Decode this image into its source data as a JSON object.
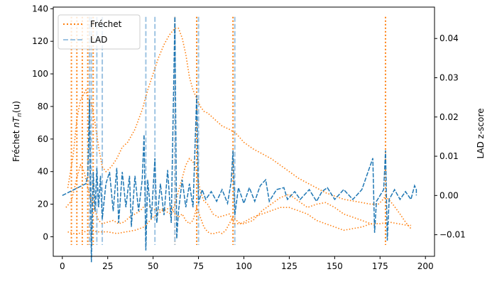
{
  "chart_data": {
    "type": "line",
    "title": "",
    "xlim": [
      -5,
      205
    ],
    "ylim_left": [
      -12,
      141
    ],
    "ylim_right": [
      -0.0155,
      0.048
    ],
    "x_ticks": [
      0,
      25,
      50,
      75,
      100,
      125,
      150,
      175,
      200
    ],
    "y_left_ticks": [
      0,
      20,
      40,
      60,
      80,
      100,
      120,
      140
    ],
    "y_right_ticks": [
      -0.01,
      0.0,
      0.01,
      0.02,
      0.03,
      0.04
    ],
    "y_right_tick_labels": [
      "−0.01",
      "0.00",
      "0.01",
      "0.02",
      "0.03",
      "0.04"
    ],
    "xlabel": "",
    "ylabel_left": {
      "prefix": "Fréchet ",
      "var": "nT",
      "sub": "n",
      "suffix": "(u)"
    },
    "ylabel_right": "LAD z-score",
    "legend": {
      "position": "upper-left",
      "items": [
        {
          "label": "Fréchet",
          "style": "dotted",
          "color": "#ff7f0e"
        },
        {
          "label": "LAD",
          "style": "dashed",
          "color": "#9ec4e2"
        }
      ]
    },
    "colors": {
      "frechet": "#ff7f0e",
      "lad_series": "#1f77b4",
      "lad_vlines": "#9ec4e2"
    },
    "frechet_vlines": [
      5,
      8,
      11,
      14,
      15,
      17,
      62,
      74,
      94,
      178
    ],
    "lad_vlines": [
      15,
      16,
      19,
      22,
      46,
      51,
      62,
      75,
      95
    ],
    "frechet_curves": [
      {
        "name": "upper",
        "x": [
          3,
          6,
          8,
          10,
          12,
          13,
          14,
          16,
          18,
          20,
          22,
          24,
          27,
          30,
          33,
          36,
          40,
          44,
          47,
          50,
          53,
          56,
          59,
          62,
          64,
          66,
          68,
          70,
          72,
          74,
          76,
          78,
          80,
          84,
          88,
          92,
          96,
          100,
          105,
          110,
          115,
          120,
          125,
          130,
          135,
          140,
          145,
          150,
          155,
          160,
          165,
          170,
          174,
          176,
          178,
          182,
          186,
          189,
          192
        ],
        "y": [
          30,
          50,
          72,
          84,
          88,
          90,
          85,
          82,
          70,
          55,
          43,
          40,
          43,
          48,
          55,
          58,
          66,
          78,
          90,
          100,
          110,
          118,
          124,
          128,
          128,
          122,
          112,
          98,
          90,
          85,
          80,
          77,
          76,
          72,
          68,
          66,
          63,
          58,
          54,
          51,
          48,
          44,
          40,
          36,
          33,
          30,
          27,
          25,
          23,
          22,
          21,
          20,
          20,
          22,
          25,
          20,
          14,
          9,
          5
        ]
      },
      {
        "name": "middle",
        "x": [
          2,
          5,
          8,
          10,
          12,
          14,
          16,
          18,
          20,
          22,
          25,
          28,
          31,
          34,
          37,
          40,
          43,
          46,
          49,
          52,
          55,
          58,
          60,
          62,
          64,
          66,
          68,
          70,
          72,
          74,
          76,
          78,
          80,
          83,
          86,
          89,
          92,
          95,
          100,
          105,
          110,
          115,
          120,
          125,
          130,
          135,
          140,
          145,
          150,
          155,
          160,
          165,
          170,
          175,
          180,
          185,
          190,
          192
        ],
        "y": [
          18,
          22,
          36,
          44,
          40,
          30,
          22,
          16,
          10,
          8,
          9,
          10,
          8,
          9,
          12,
          14,
          16,
          20,
          18,
          16,
          17,
          15,
          14,
          20,
          28,
          36,
          44,
          48,
          46,
          40,
          28,
          22,
          20,
          14,
          12,
          13,
          14,
          8,
          8,
          10,
          16,
          20,
          24,
          26,
          22,
          18,
          20,
          21,
          18,
          14,
          12,
          10,
          8,
          8,
          9,
          8,
          7,
          7
        ]
      },
      {
        "name": "lower",
        "x": [
          3,
          6,
          9,
          12,
          15,
          20,
          25,
          30,
          35,
          40,
          45,
          50,
          55,
          60,
          62,
          64,
          66,
          68,
          70,
          72,
          74,
          76,
          78,
          80,
          82,
          84,
          86,
          88,
          90,
          92,
          94,
          96,
          98,
          100,
          105,
          110,
          115,
          120,
          125,
          130,
          135,
          140,
          145,
          150,
          155,
          160,
          165,
          170,
          172
        ],
        "y": [
          3,
          2,
          2,
          3,
          4,
          3,
          3,
          2,
          3,
          4,
          6,
          12,
          16,
          18,
          14,
          12,
          14,
          10,
          8,
          10,
          18,
          12,
          6,
          3,
          2,
          2,
          3,
          2,
          4,
          8,
          12,
          10,
          8,
          9,
          12,
          14,
          16,
          18,
          18,
          16,
          14,
          10,
          8,
          6,
          4,
          5,
          6,
          8,
          7
        ]
      }
    ],
    "lad_series": {
      "x_start": 0,
      "x_end": 195,
      "baseline": 0.0,
      "spikes": [
        {
          "x": 13,
          "z": 0.003
        },
        {
          "x": 14,
          "z": 0.005
        },
        {
          "x": 15,
          "z": 0.0245
        },
        {
          "x": 16,
          "z": -0.017
        },
        {
          "x": 17,
          "z": 0.006
        },
        {
          "x": 18,
          "z": -0.004
        },
        {
          "x": 19,
          "z": 0.007
        },
        {
          "x": 20,
          "z": -0.003
        },
        {
          "x": 21,
          "z": 0.005
        },
        {
          "x": 22,
          "z": -0.006
        },
        {
          "x": 24,
          "z": 0.003
        },
        {
          "x": 26,
          "z": 0.006
        },
        {
          "x": 28,
          "z": -0.004
        },
        {
          "x": 30,
          "z": 0.007
        },
        {
          "x": 31,
          "z": -0.007
        },
        {
          "x": 33,
          "z": 0.006
        },
        {
          "x": 35,
          "z": -0.003
        },
        {
          "x": 37,
          "z": 0.005
        },
        {
          "x": 38,
          "z": -0.008
        },
        {
          "x": 40,
          "z": 0.005
        },
        {
          "x": 42,
          "z": -0.004
        },
        {
          "x": 44,
          "z": 0.004
        },
        {
          "x": 45,
          "z": 0.0155
        },
        {
          "x": 46,
          "z": -0.014
        },
        {
          "x": 47,
          "z": 0.004
        },
        {
          "x": 49,
          "z": -0.006
        },
        {
          "x": 51,
          "z": 0.0095
        },
        {
          "x": 52,
          "z": -0.007
        },
        {
          "x": 54,
          "z": 0.003
        },
        {
          "x": 56,
          "z": -0.005
        },
        {
          "x": 58,
          "z": 0.0065
        },
        {
          "x": 60,
          "z": -0.007
        },
        {
          "x": 62,
          "z": 0.0455
        },
        {
          "x": 63,
          "z": -0.011
        },
        {
          "x": 64,
          "z": -0.004
        },
        {
          "x": 66,
          "z": 0.004
        },
        {
          "x": 68,
          "z": -0.003
        },
        {
          "x": 70,
          "z": 0.003
        },
        {
          "x": 72,
          "z": -0.003
        },
        {
          "x": 74,
          "z": 0.0255
        },
        {
          "x": 75,
          "z": -0.002
        },
        {
          "x": 77,
          "z": 0.0015
        },
        {
          "x": 79,
          "z": -0.001
        },
        {
          "x": 82,
          "z": 0.001
        },
        {
          "x": 85,
          "z": -0.0015
        },
        {
          "x": 88,
          "z": 0.0015
        },
        {
          "x": 91,
          "z": -0.002
        },
        {
          "x": 93,
          "z": 0.0035
        },
        {
          "x": 94,
          "z": 0.0115
        },
        {
          "x": 95,
          "z": -0.005
        },
        {
          "x": 97,
          "z": 0.002
        },
        {
          "x": 100,
          "z": -0.002
        },
        {
          "x": 103,
          "z": 0.002
        },
        {
          "x": 106,
          "z": -0.0015
        },
        {
          "x": 109,
          "z": 0.0025
        },
        {
          "x": 112,
          "z": 0.004
        },
        {
          "x": 114,
          "z": -0.0015
        },
        {
          "x": 118,
          "z": 0.0015
        },
        {
          "x": 122,
          "z": 0.002
        },
        {
          "x": 124,
          "z": -0.001
        },
        {
          "x": 128,
          "z": 0.001
        },
        {
          "x": 131,
          "z": -0.001
        },
        {
          "x": 136,
          "z": 0.0015
        },
        {
          "x": 140,
          "z": -0.0015
        },
        {
          "x": 143,
          "z": 0.001
        },
        {
          "x": 146,
          "z": 0.002
        },
        {
          "x": 150,
          "z": -0.001
        },
        {
          "x": 155,
          "z": 0.0015
        },
        {
          "x": 160,
          "z": -0.001
        },
        {
          "x": 165,
          "z": 0.0015
        },
        {
          "x": 171,
          "z": 0.0095
        },
        {
          "x": 172,
          "z": -0.0095
        },
        {
          "x": 173,
          "z": -0.0015
        },
        {
          "x": 177,
          "z": 0.0015
        },
        {
          "x": 178,
          "z": 0.0115
        },
        {
          "x": 179,
          "z": -0.0115
        },
        {
          "x": 180,
          "z": -0.001
        },
        {
          "x": 183,
          "z": 0.0015
        },
        {
          "x": 186,
          "z": -0.001
        },
        {
          "x": 189,
          "z": 0.001
        },
        {
          "x": 192,
          "z": -0.001
        },
        {
          "x": 194,
          "z": 0.0025
        },
        {
          "x": 195,
          "z": 0.0015
        }
      ]
    }
  }
}
